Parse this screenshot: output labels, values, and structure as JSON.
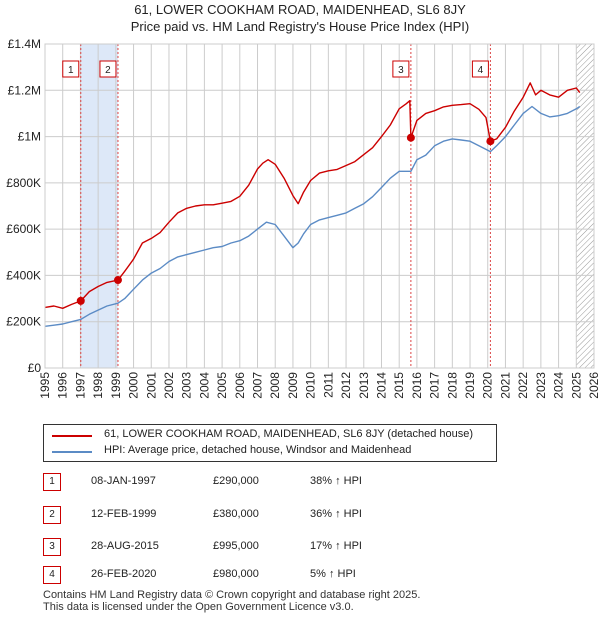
{
  "title_line1": "61, LOWER COOKHAM ROAD, MAIDENHEAD, SL6 8JY",
  "title_line2": "Price paid vs. HM Land Registry's House Price Index (HPI)",
  "colors": {
    "price_line": "#cc0000",
    "hpi_line": "#5b8bc5",
    "shade": "#dde8f8",
    "grid": "#cccccc",
    "vline": "#dd4444"
  },
  "legend": {
    "price_label": "61, LOWER COOKHAM ROAD, MAIDENHEAD, SL6 8JY (detached house)",
    "hpi_label": "HPI: Average price, detached house, Windsor and Maidenhead"
  },
  "sales": [
    {
      "num": "1",
      "date": "08-JAN-1997",
      "price": "£290,000",
      "hpi": "38% ↑ HPI"
    },
    {
      "num": "2",
      "date": "12-FEB-1999",
      "price": "£380,000",
      "hpi": "36% ↑ HPI"
    },
    {
      "num": "3",
      "date": "28-AUG-2015",
      "price": "£995,000",
      "hpi": "17% ↑ HPI"
    },
    {
      "num": "4",
      "date": "26-FEB-2020",
      "price": "£980,000",
      "hpi": "5% ↑ HPI"
    }
  ],
  "footer_line1": "Contains HM Land Registry data © Crown copyright and database right 2025.",
  "footer_line2": "This data is licensed under the Open Government Licence v3.0.",
  "chart_data": {
    "type": "line",
    "title": "61, LOWER COOKHAM ROAD, MAIDENHEAD, SL6 8JY",
    "subtitle": "Price paid vs. HM Land Registry's House Price Index (HPI)",
    "xlabel": "",
    "ylabel": "",
    "xlim": [
      1995,
      2026
    ],
    "ylim": [
      0,
      1400000
    ],
    "x_ticks": [
      1995,
      1996,
      1997,
      1998,
      1999,
      2000,
      2001,
      2002,
      2003,
      2004,
      2005,
      2006,
      2007,
      2008,
      2009,
      2010,
      2011,
      2012,
      2013,
      2014,
      2015,
      2016,
      2017,
      2018,
      2019,
      2020,
      2021,
      2022,
      2023,
      2024,
      2025,
      2026
    ],
    "y_ticks": [
      {
        "value": 0,
        "label": "£0"
      },
      {
        "value": 200000,
        "label": "£200K"
      },
      {
        "value": 400000,
        "label": "£400K"
      },
      {
        "value": 600000,
        "label": "£600K"
      },
      {
        "value": 800000,
        "label": "£800K"
      },
      {
        "value": 1000000,
        "label": "£1M"
      },
      {
        "value": 1200000,
        "label": "£1.2M"
      },
      {
        "value": 1400000,
        "label": "£1.4M"
      }
    ],
    "grid": true,
    "shaded_ranges": [
      [
        1997.02,
        1999.12
      ]
    ],
    "hatched_from": 2025.0,
    "sale_markers": [
      {
        "label": "1",
        "x": 1997.02,
        "y": 290000
      },
      {
        "label": "2",
        "x": 1999.12,
        "y": 380000
      },
      {
        "label": "3",
        "x": 2015.66,
        "y": 995000
      },
      {
        "label": "4",
        "x": 2020.15,
        "y": 980000
      }
    ],
    "series": [
      {
        "name": "61, LOWER COOKHAM ROAD, MAIDENHEAD, SL6 8JY (detached house)",
        "x": [
          1995.0,
          1995.5,
          1996.0,
          1996.5,
          1997.02,
          1997.5,
          1998.0,
          1998.5,
          1999.12,
          1999.5,
          2000.0,
          2000.5,
          2001.0,
          2001.5,
          2002.0,
          2002.5,
          2003.0,
          2003.5,
          2004.0,
          2004.5,
          2005.0,
          2005.5,
          2006.0,
          2006.5,
          2007.0,
          2007.3,
          2007.6,
          2008.0,
          2008.5,
          2009.0,
          2009.3,
          2009.6,
          2010.0,
          2010.5,
          2011.0,
          2011.5,
          2012.0,
          2012.5,
          2013.0,
          2013.5,
          2014.0,
          2014.5,
          2015.0,
          2015.4,
          2015.6,
          2015.66,
          2016.0,
          2016.5,
          2017.0,
          2017.5,
          2018.0,
          2018.5,
          2019.0,
          2019.5,
          2019.9,
          2020.15,
          2020.5,
          2021.0,
          2021.5,
          2022.0,
          2022.4,
          2022.7,
          2023.0,
          2023.5,
          2024.0,
          2024.5,
          2025.0,
          2025.2
        ],
        "values": [
          262000,
          268000,
          258000,
          275000,
          290000,
          330000,
          352000,
          370000,
          380000,
          418000,
          470000,
          540000,
          560000,
          585000,
          630000,
          670000,
          690000,
          700000,
          705000,
          705000,
          712000,
          720000,
          742000,
          790000,
          860000,
          885000,
          900000,
          880000,
          820000,
          745000,
          710000,
          760000,
          810000,
          842000,
          852000,
          858000,
          875000,
          892000,
          922000,
          952000,
          1000000,
          1050000,
          1120000,
          1142000,
          1155000,
          995000,
          1070000,
          1100000,
          1112000,
          1128000,
          1135000,
          1138000,
          1142000,
          1118000,
          1082000,
          980000,
          990000,
          1040000,
          1110000,
          1170000,
          1232000,
          1180000,
          1200000,
          1180000,
          1170000,
          1200000,
          1210000,
          1190000
        ]
      },
      {
        "name": "HPI: Average price, detached house, Windsor and Maidenhead",
        "x": [
          1995.0,
          1995.5,
          1996.0,
          1996.5,
          1997.02,
          1997.5,
          1998.0,
          1998.5,
          1999.12,
          1999.5,
          2000.0,
          2000.5,
          2001.0,
          2001.5,
          2002.0,
          2002.5,
          2003.0,
          2003.5,
          2004.0,
          2004.5,
          2005.0,
          2005.5,
          2006.0,
          2006.5,
          2007.0,
          2007.5,
          2008.0,
          2008.5,
          2009.0,
          2009.3,
          2009.6,
          2010.0,
          2010.5,
          2011.0,
          2011.5,
          2012.0,
          2012.5,
          2013.0,
          2013.5,
          2014.0,
          2014.5,
          2015.0,
          2015.66,
          2016.0,
          2016.5,
          2017.0,
          2017.5,
          2018.0,
          2018.5,
          2019.0,
          2019.5,
          2020.15,
          2020.5,
          2021.0,
          2021.5,
          2022.0,
          2022.5,
          2023.0,
          2023.5,
          2024.0,
          2024.5,
          2025.0,
          2025.2
        ],
        "values": [
          180000,
          185000,
          190000,
          200000,
          210000,
          232000,
          250000,
          268000,
          280000,
          300000,
          340000,
          380000,
          410000,
          430000,
          460000,
          480000,
          490000,
          500000,
          510000,
          520000,
          525000,
          540000,
          550000,
          570000,
          600000,
          630000,
          620000,
          570000,
          520000,
          540000,
          580000,
          620000,
          640000,
          650000,
          660000,
          670000,
          690000,
          710000,
          740000,
          780000,
          820000,
          850000,
          850000,
          900000,
          920000,
          960000,
          980000,
          990000,
          985000,
          980000,
          960000,
          935000,
          960000,
          1000000,
          1050000,
          1100000,
          1130000,
          1100000,
          1085000,
          1090000,
          1100000,
          1120000,
          1130000
        ]
      }
    ]
  }
}
